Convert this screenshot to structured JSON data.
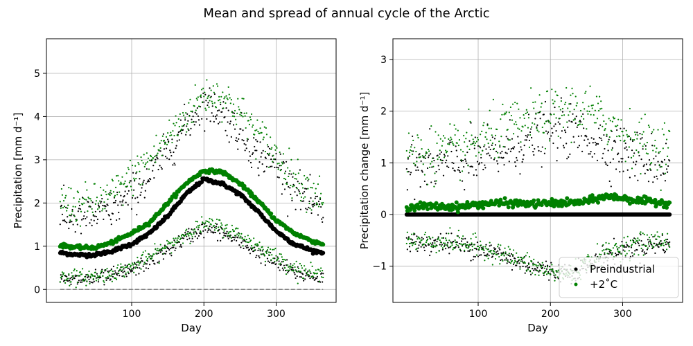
{
  "figure_title": "Mean and spread of annual cycle of the Arctic",
  "colors": {
    "preindustrial": "#000000",
    "warming": "#008000",
    "zero_line": "#808080",
    "grid": "#b0b0b0"
  },
  "chart_data": [
    {
      "type": "scatter",
      "title": "",
      "xlabel": "Day",
      "ylabel": "Precipitation [mm d⁻¹]",
      "xlim": [
        -18,
        383
      ],
      "ylim": [
        -0.3,
        5.8
      ],
      "xticks": [
        100,
        200,
        300
      ],
      "yticks": [
        0,
        1,
        2,
        3,
        4,
        5
      ],
      "grid": true,
      "reference_line": {
        "y": 0,
        "style": "dashed",
        "color": "#808080"
      },
      "series": [
        {
          "name": "Preindustrial",
          "role": "mean",
          "color": "#000000",
          "x": [
            1,
            25,
            50,
            75,
            100,
            125,
            150,
            175,
            200,
            225,
            250,
            275,
            300,
            325,
            350,
            365
          ],
          "y": [
            0.85,
            0.8,
            0.8,
            0.9,
            1.05,
            1.3,
            1.7,
            2.2,
            2.55,
            2.45,
            2.2,
            1.8,
            1.35,
            1.05,
            0.9,
            0.85
          ]
        },
        {
          "name": "+2˚C",
          "role": "mean",
          "color": "#008000",
          "x": [
            1,
            25,
            50,
            75,
            100,
            125,
            150,
            175,
            200,
            225,
            250,
            275,
            300,
            325,
            350,
            365
          ],
          "y": [
            1.02,
            0.97,
            0.97,
            1.1,
            1.3,
            1.55,
            2.0,
            2.45,
            2.75,
            2.72,
            2.45,
            2.05,
            1.6,
            1.3,
            1.12,
            1.05
          ]
        },
        {
          "name": "Preindustrial",
          "role": "upper",
          "color": "#000000",
          "x": [
            1,
            25,
            50,
            75,
            100,
            125,
            150,
            175,
            200,
            225,
            250,
            275,
            300,
            325,
            350,
            365
          ],
          "y": [
            1.7,
            1.65,
            1.7,
            1.85,
            2.2,
            2.6,
            3.2,
            3.8,
            4.3,
            4.1,
            3.6,
            3.1,
            2.9,
            2.4,
            1.9,
            1.8
          ]
        },
        {
          "name": "+2˚C",
          "role": "upper",
          "color": "#008000",
          "x": [
            1,
            25,
            50,
            75,
            100,
            125,
            150,
            175,
            200,
            225,
            250,
            275,
            300,
            325,
            350,
            365
          ],
          "y": [
            2.0,
            1.95,
            2.0,
            2.2,
            2.6,
            3.0,
            3.5,
            4.0,
            4.5,
            4.5,
            4.1,
            3.6,
            3.1,
            2.6,
            2.25,
            2.2
          ]
        },
        {
          "name": "Preindustrial",
          "role": "lower",
          "color": "#000000",
          "x": [
            1,
            25,
            50,
            75,
            100,
            125,
            150,
            175,
            200,
            225,
            250,
            275,
            300,
            325,
            350,
            365
          ],
          "y": [
            0.22,
            0.22,
            0.25,
            0.32,
            0.45,
            0.65,
            0.9,
            1.2,
            1.4,
            1.3,
            1.1,
            0.85,
            0.6,
            0.4,
            0.3,
            0.25
          ]
        },
        {
          "name": "+2˚C",
          "role": "lower",
          "color": "#008000",
          "x": [
            1,
            25,
            50,
            75,
            100,
            125,
            150,
            175,
            200,
            225,
            250,
            275,
            300,
            325,
            350,
            365
          ],
          "y": [
            0.3,
            0.28,
            0.3,
            0.38,
            0.52,
            0.75,
            1.0,
            1.3,
            1.5,
            1.45,
            1.25,
            1.0,
            0.75,
            0.5,
            0.38,
            0.32
          ]
        }
      ]
    },
    {
      "type": "scatter",
      "title": "",
      "xlabel": "Day",
      "ylabel": "Precipitation change [mm d⁻¹]",
      "xlim": [
        -18,
        383
      ],
      "ylim": [
        -1.7,
        3.4
      ],
      "xticks": [
        100,
        200,
        300
      ],
      "yticks": [
        -1,
        0,
        1,
        2,
        3
      ],
      "grid": true,
      "legend": {
        "position": "lower-right",
        "entries": [
          "Preindustrial",
          "+2˚C"
        ]
      },
      "series": [
        {
          "name": "Preindustrial",
          "role": "mean",
          "color": "#000000",
          "x": [
            1,
            100,
            200,
            300,
            365
          ],
          "y": [
            0,
            0,
            0,
            0,
            0
          ]
        },
        {
          "name": "+2˚C",
          "role": "mean",
          "color": "#008000",
          "x": [
            1,
            25,
            50,
            75,
            100,
            125,
            150,
            175,
            200,
            225,
            250,
            275,
            300,
            325,
            350,
            365
          ],
          "y": [
            0.15,
            0.16,
            0.15,
            0.15,
            0.2,
            0.22,
            0.22,
            0.2,
            0.22,
            0.22,
            0.25,
            0.35,
            0.32,
            0.26,
            0.24,
            0.22
          ]
        },
        {
          "name": "Preindustrial",
          "role": "upper",
          "color": "#000000",
          "x": [
            1,
            25,
            50,
            75,
            100,
            125,
            150,
            175,
            200,
            225,
            250,
            275,
            300,
            325,
            350,
            365
          ],
          "y": [
            0.95,
            0.92,
            0.95,
            1.0,
            1.05,
            1.15,
            1.3,
            1.45,
            1.6,
            1.6,
            1.5,
            1.35,
            1.2,
            1.1,
            1.0,
            1.0
          ]
        },
        {
          "name": "+2˚C",
          "role": "upper",
          "color": "#008000",
          "x": [
            1,
            25,
            50,
            75,
            100,
            125,
            150,
            175,
            200,
            225,
            250,
            275,
            300,
            325,
            350,
            365
          ],
          "y": [
            1.2,
            1.15,
            1.2,
            1.25,
            1.4,
            1.55,
            1.7,
            1.8,
            1.9,
            2.05,
            2.0,
            1.8,
            1.6,
            1.4,
            1.3,
            1.3
          ]
        },
        {
          "name": "Preindustrial",
          "role": "lower",
          "color": "#000000",
          "x": [
            1,
            25,
            50,
            75,
            100,
            125,
            150,
            175,
            200,
            225,
            250,
            275,
            300,
            325,
            350,
            365
          ],
          "y": [
            -0.55,
            -0.55,
            -0.55,
            -0.6,
            -0.65,
            -0.75,
            -0.9,
            -1.0,
            -1.1,
            -1.1,
            -1.0,
            -0.8,
            -0.7,
            -0.6,
            -0.58,
            -0.55
          ]
        },
        {
          "name": "+2˚C",
          "role": "lower",
          "color": "#008000",
          "x": [
            1,
            25,
            50,
            75,
            100,
            125,
            150,
            175,
            200,
            225,
            250,
            275,
            300,
            325,
            350,
            365
          ],
          "y": [
            -0.5,
            -0.52,
            -0.52,
            -0.55,
            -0.62,
            -0.72,
            -0.85,
            -1.0,
            -1.12,
            -1.15,
            -0.95,
            -0.75,
            -0.62,
            -0.55,
            -0.5,
            -0.5
          ]
        }
      ]
    }
  ]
}
